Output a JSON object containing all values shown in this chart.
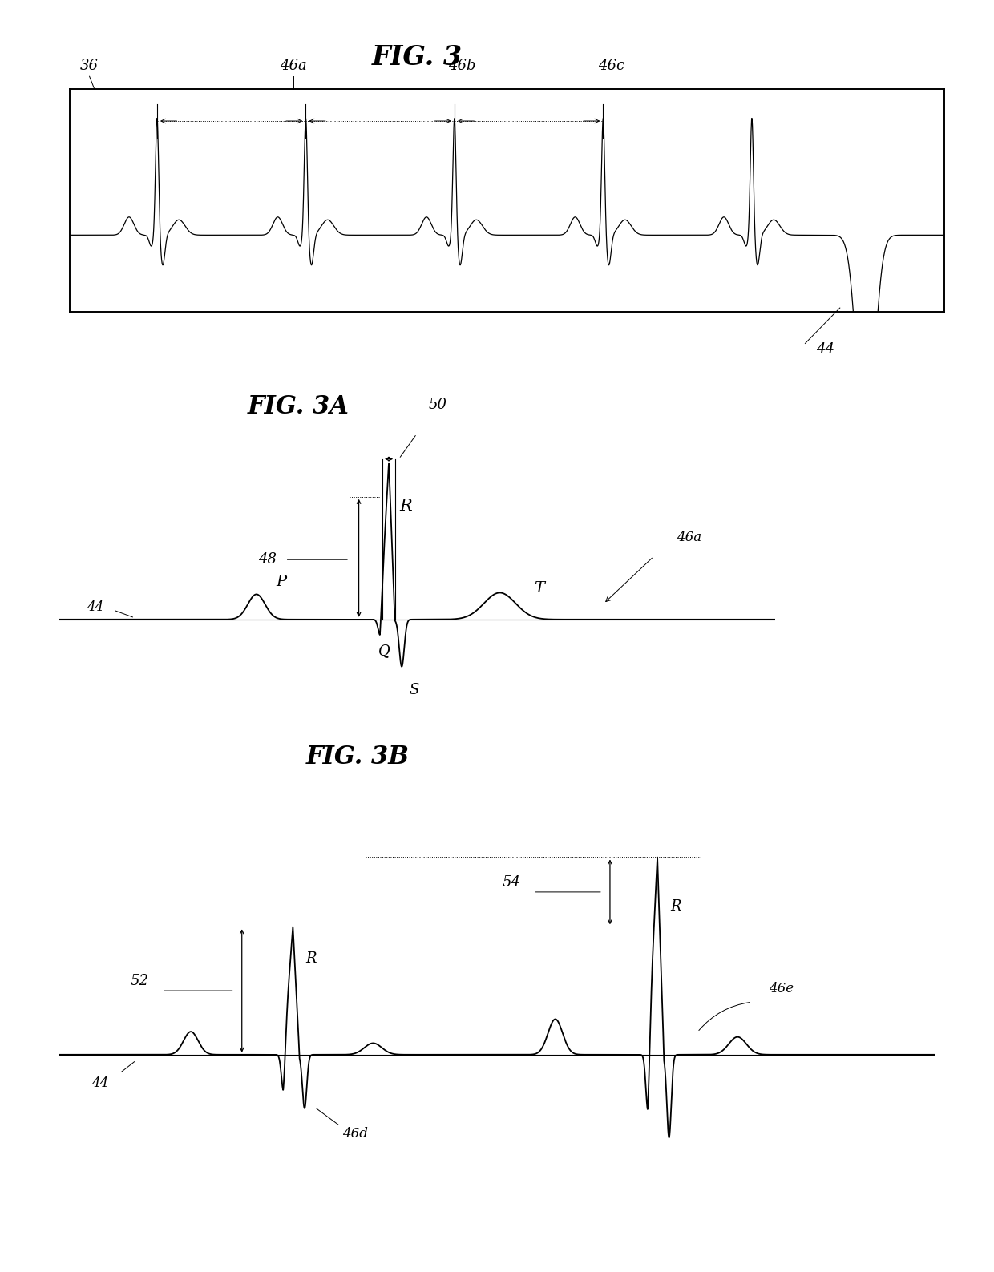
{
  "title": "FIG. 3",
  "title_3a": "FIG. 3A",
  "title_3b": "FIG. 3B",
  "bg_color": "#ffffff",
  "line_color": "#000000",
  "fig_width": 12.4,
  "fig_height": 15.87
}
